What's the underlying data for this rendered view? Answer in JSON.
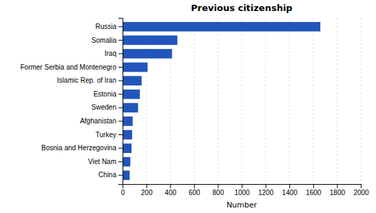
{
  "chart_data": {
    "type": "bar",
    "orientation": "horizontal",
    "title": "Previous citizenship",
    "xlabel": "Number",
    "categories": [
      "China",
      "Viet Nam",
      "Bosnia and Herzegovina",
      "Turkey",
      "Afghanistan",
      "Sweden",
      "Estonia",
      "Islamic Rep. of Iran",
      "Former Serbia and Montenegro",
      "Iraq",
      "Somalia",
      "Russia"
    ],
    "values": [
      60,
      65,
      75,
      80,
      85,
      130,
      145,
      160,
      210,
      415,
      460,
      1660
    ],
    "color": "#2255bb",
    "xlim": [
      0,
      2000
    ],
    "xticks": [
      0,
      200,
      400,
      600,
      800,
      1000,
      1200,
      1400,
      1600,
      1800,
      2000
    ],
    "grid": true
  }
}
